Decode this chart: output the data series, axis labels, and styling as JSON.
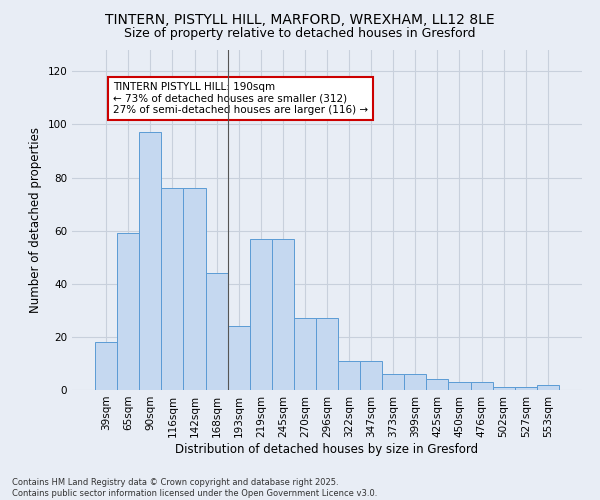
{
  "title1": "TINTERN, PISTYLL HILL, MARFORD, WREXHAM, LL12 8LE",
  "title2": "Size of property relative to detached houses in Gresford",
  "xlabel": "Distribution of detached houses by size in Gresford",
  "ylabel": "Number of detached properties",
  "categories": [
    "39sqm",
    "65sqm",
    "90sqm",
    "116sqm",
    "142sqm",
    "168sqm",
    "193sqm",
    "219sqm",
    "245sqm",
    "270sqm",
    "296sqm",
    "322sqm",
    "347sqm",
    "373sqm",
    "399sqm",
    "425sqm",
    "450sqm",
    "476sqm",
    "502sqm",
    "527sqm",
    "553sqm"
  ],
  "values": [
    18,
    59,
    97,
    76,
    76,
    44,
    24,
    57,
    57,
    27,
    27,
    11,
    11,
    6,
    6,
    4,
    3,
    3,
    1,
    1,
    2
  ],
  "bar_color": "#c5d8f0",
  "bar_edge_color": "#5b9bd5",
  "highlight_bar_index": 6,
  "annotation_text": "TINTERN PISTYLL HILL: 190sqm\n← 73% of detached houses are smaller (312)\n27% of semi-detached houses are larger (116) →",
  "annotation_box_color": "#ffffff",
  "annotation_box_edge": "#cc0000",
  "grid_color": "#c8d0dc",
  "background_color": "#e8edf5",
  "yticks": [
    0,
    20,
    40,
    60,
    80,
    100,
    120
  ],
  "ylim": [
    0,
    128
  ],
  "footnote": "Contains HM Land Registry data © Crown copyright and database right 2025.\nContains public sector information licensed under the Open Government Licence v3.0.",
  "title_fontsize": 10,
  "subtitle_fontsize": 9,
  "axis_label_fontsize": 8.5,
  "tick_fontsize": 7.5,
  "annotation_fontsize": 7.5
}
